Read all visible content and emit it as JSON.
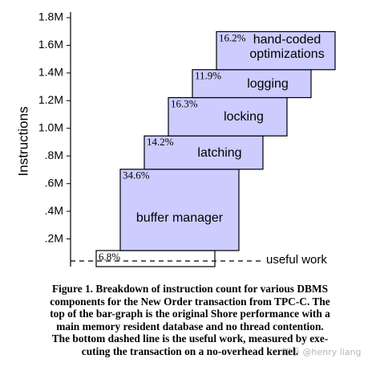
{
  "chart_data": {
    "type": "waterfall",
    "ylabel": "Instructions",
    "categories": [
      "useful work",
      "buffer manager",
      "latching",
      "locking",
      "logging",
      "hand-coded optimizations"
    ],
    "values": [
      116000,
      588000,
      241000,
      277000,
      202000,
      275000
    ],
    "share_labels": [
      "6.8%",
      "34.6%",
      "14.2%",
      "16.3%",
      "11.9%",
      "16.2%"
    ],
    "color": "#ccccff",
    "ylim": [
      0,
      1800000
    ],
    "yticks": [
      {
        "value": 200000,
        "label": ".2M"
      },
      {
        "value": 400000,
        "label": ".4M"
      },
      {
        "value": 600000,
        "label": ".6M"
      },
      {
        "value": 800000,
        "label": ".8M"
      },
      {
        "value": 1000000,
        "label": "1.0M"
      },
      {
        "value": 1200000,
        "label": "1.2M"
      },
      {
        "value": 1400000,
        "label": "1.4M"
      },
      {
        "value": 1600000,
        "label": "1.6M"
      },
      {
        "value": 1800000,
        "label": "1.8M"
      }
    ]
  },
  "caption_lines": [
    "Figure 1.  Breakdown of instruction count for various DBMS",
    "components for the New Order transaction from TPC-C.  The",
    "top of the bar-graph is the original Shore performance with a",
    "main memory resident database and no thread contention.",
    "The bottom dashed line is the useful work, measured by exe-",
    "cuting the transaction on a no-overhead kernel."
  ],
  "watermark": "知乎 @henry liang"
}
